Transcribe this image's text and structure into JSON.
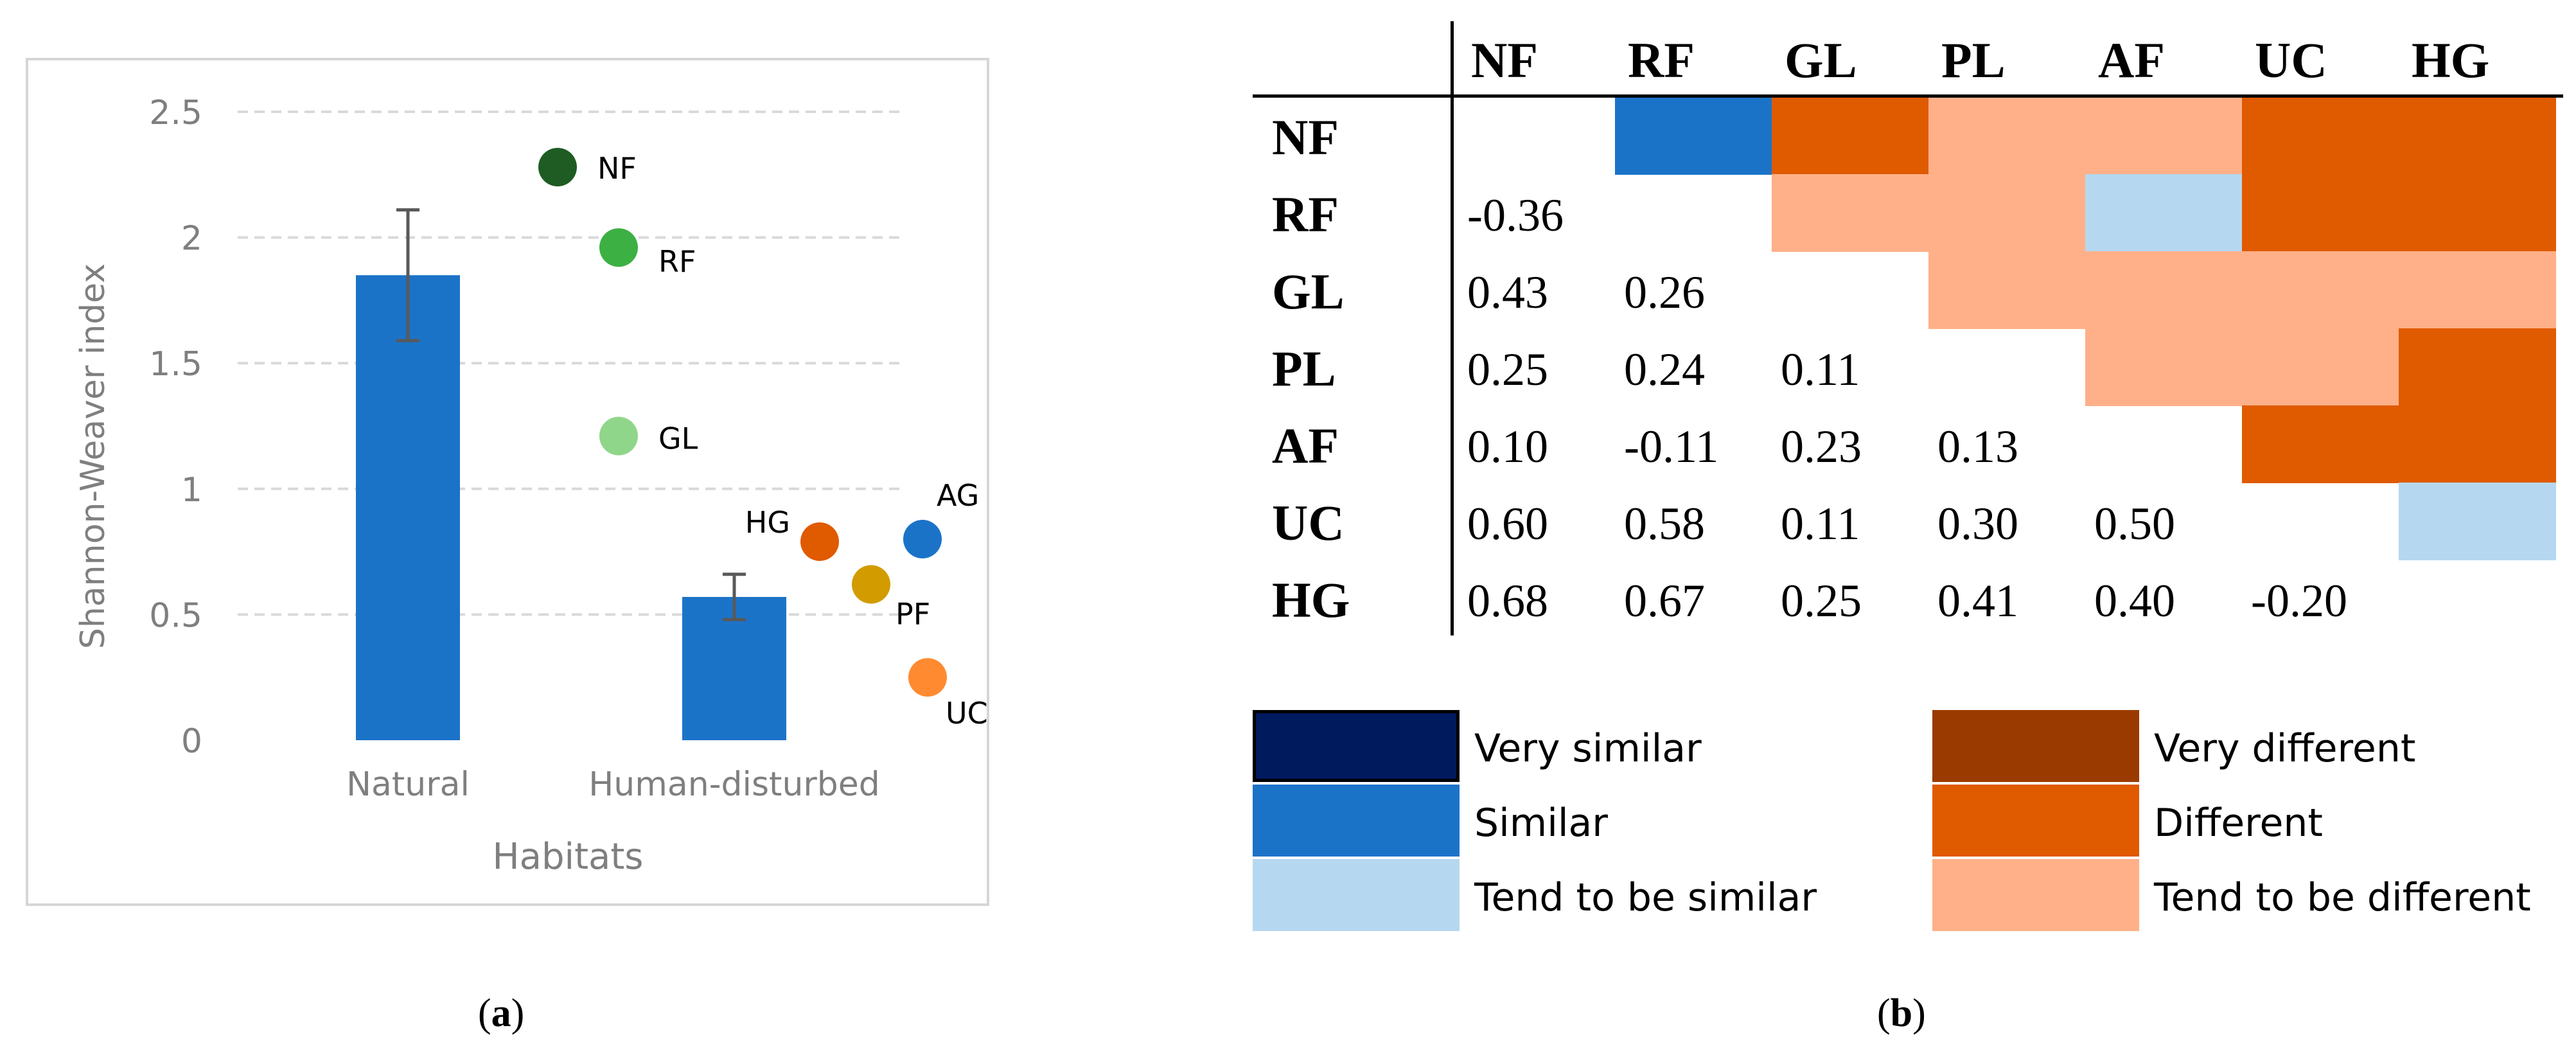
{
  "chart_data": [
    {
      "panel": "(a)",
      "type": "bar",
      "categories": [
        "Natural",
        "Human-disturbed"
      ],
      "values": [
        1.85,
        0.57
      ],
      "error": [
        0.26,
        0.09
      ],
      "points": [
        {
          "label": "NF",
          "category": "Natural",
          "value": 2.28,
          "color": "#1e5c23"
        },
        {
          "label": "RF",
          "category": "Natural",
          "value": 1.96,
          "color": "#3cb043"
        },
        {
          "label": "GL",
          "category": "Natural",
          "value": 1.21,
          "color": "#90d68a"
        },
        {
          "label": "HG",
          "category": "Human-disturbed",
          "value": 0.79,
          "color": "#e05a00"
        },
        {
          "label": "PF",
          "category": "Human-disturbed",
          "value": 0.62,
          "color": "#d29b00"
        },
        {
          "label": "UC",
          "category": "Human-disturbed",
          "value": 0.25,
          "color": "#ff8a30"
        },
        {
          "label": "AG",
          "category": "Human-disturbed",
          "value": 0.8,
          "color": "#1b73c8"
        }
      ],
      "xlabel": "Habitats",
      "ylabel": "Shannon-Weaver index",
      "ylim": [
        0,
        2.5
      ],
      "yticks": [
        "0",
        "0.5",
        "1",
        "1.5",
        "2",
        "2.5"
      ],
      "grid": true,
      "bar_color": "#1b73c8"
    },
    {
      "panel": "(b)",
      "type": "heatmap",
      "labels": [
        "NF",
        "RF",
        "GL",
        "PL",
        "AF",
        "UC",
        "HG"
      ],
      "lower_values": [
        [
          null,
          null,
          null,
          null,
          null,
          null,
          null
        ],
        [
          "-0.36",
          null,
          null,
          null,
          null,
          null,
          null
        ],
        [
          "0.43",
          "0.26",
          null,
          null,
          null,
          null,
          null
        ],
        [
          "0.25",
          "0.24",
          "0.11",
          null,
          null,
          null,
          null
        ],
        [
          "0.10",
          "-0.11",
          "0.23",
          "0.13",
          null,
          null,
          null
        ],
        [
          "0.60",
          "0.58",
          "0.11",
          "0.30",
          "0.50",
          null,
          null
        ],
        [
          "0.68",
          "0.67",
          "0.25",
          "0.41",
          "0.40",
          "-0.20",
          null
        ]
      ],
      "upper_categories": [
        [
          null,
          "similar",
          "different",
          "tend_different",
          "tend_different",
          "different",
          "different"
        ],
        [
          null,
          null,
          "tend_different",
          "tend_different",
          "tend_similar",
          "different",
          "different"
        ],
        [
          null,
          null,
          null,
          "tend_different",
          "tend_different",
          "tend_different",
          "tend_different"
        ],
        [
          null,
          null,
          null,
          null,
          "tend_different",
          "tend_different",
          "different"
        ],
        [
          null,
          null,
          null,
          null,
          null,
          "different",
          "different"
        ],
        [
          null,
          null,
          null,
          null,
          null,
          null,
          "tend_similar"
        ],
        [
          null,
          null,
          null,
          null,
          null,
          null,
          null
        ]
      ],
      "legend": [
        {
          "key": "very_similar",
          "label": "Very similar",
          "color": "#001a5e"
        },
        {
          "key": "very_different",
          "label": "Very different",
          "color": "#9a3a00"
        },
        {
          "key": "similar",
          "label": "Similar",
          "color": "#1b73c8"
        },
        {
          "key": "different",
          "label": "Different",
          "color": "#e05a00"
        },
        {
          "key": "tend_similar",
          "label": "Tend to be similar",
          "color": "#b5d8f0"
        },
        {
          "key": "tend_different",
          "label": "Tend to be different",
          "color": "#ffb088"
        }
      ]
    }
  ],
  "captions": {
    "a": {
      "open": "(",
      "letter": "a",
      "close": ")"
    },
    "b": {
      "open": "(",
      "letter": "b",
      "close": ")"
    }
  }
}
